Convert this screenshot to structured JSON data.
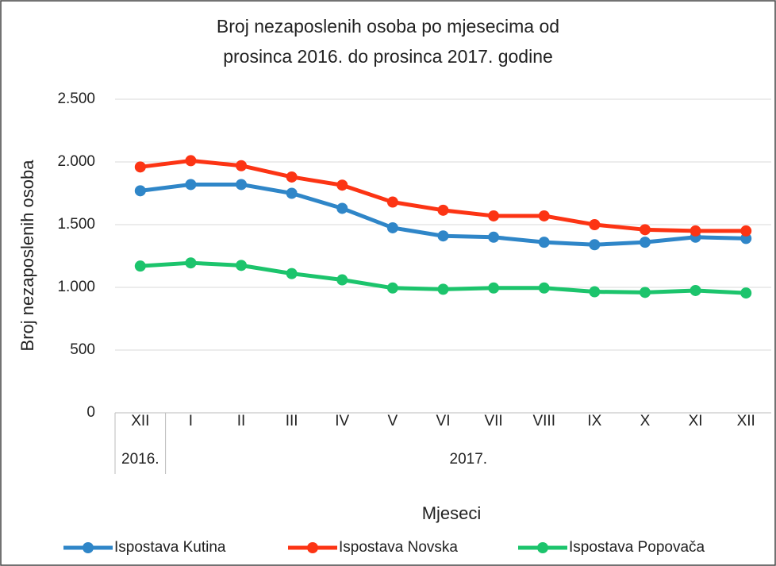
{
  "chart_data": {
    "type": "line",
    "title": [
      "Broj nezaposlenih osoba po mjesecima od",
      "prosinca 2016. do prosinca 2017. godine"
    ],
    "x_label": "Mjeseci",
    "y_label": "Broj nezaposlenih osoba",
    "categories": [
      "XII",
      "I",
      "II",
      "III",
      "IV",
      "V",
      "VI",
      "VII",
      "VIII",
      "IX",
      "X",
      "XI",
      "XII"
    ],
    "category_groups": [
      {
        "label": "2016.",
        "span": 1
      },
      {
        "label": "2017.",
        "span": 12
      }
    ],
    "series": [
      {
        "name": "Ispostava Kutina",
        "color": "#2f86c8",
        "values": [
          1770,
          1820,
          1820,
          1750,
          1630,
          1475,
          1410,
          1400,
          1360,
          1340,
          1360,
          1400,
          1390
        ]
      },
      {
        "name": "Ispostava Novska",
        "color": "#fc3414",
        "values": [
          1960,
          2010,
          1970,
          1880,
          1815,
          1680,
          1615,
          1570,
          1570,
          1500,
          1460,
          1450,
          1450
        ]
      },
      {
        "name": "Ispostava Popovača",
        "color": "#1cc46c",
        "values": [
          1170,
          1195,
          1175,
          1110,
          1060,
          995,
          985,
          995,
          995,
          965,
          960,
          975,
          955
        ]
      }
    ],
    "ylim": [
      0,
      2500
    ],
    "yticks": [
      0,
      500,
      {
        "value": 1000,
        "label": "1.000"
      },
      {
        "value": 1500,
        "label": "1.500"
      },
      {
        "value": 2000,
        "label": "2.000"
      },
      {
        "value": 2500,
        "label": "2.500"
      }
    ],
    "grid": true,
    "legend": "bottom"
  }
}
